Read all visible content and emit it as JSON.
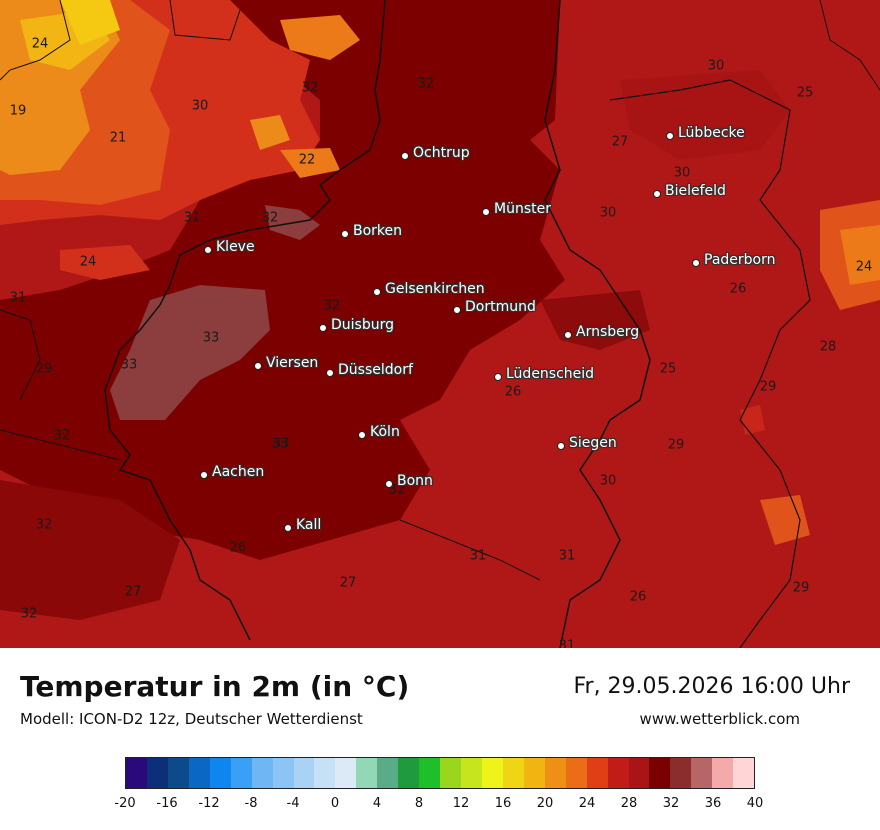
{
  "title": "Temperatur in 2m (in °C)",
  "model": "Modell: ICON-D2 12z, Deutscher Wetterdienst",
  "datetime": "Fr, 29.05.2026 16:00 Uhr",
  "website": "www.wetterblick.com",
  "cities": [
    {
      "name": "Ochtrup"
    },
    {
      "name": "Lübbecke"
    },
    {
      "name": "Bielefeld"
    },
    {
      "name": "Münster"
    },
    {
      "name": "Borken"
    },
    {
      "name": "Kleve"
    },
    {
      "name": "Paderborn"
    },
    {
      "name": "Gelsenkirchen"
    },
    {
      "name": "Dortmund"
    },
    {
      "name": "Duisburg"
    },
    {
      "name": "Arnsberg"
    },
    {
      "name": "Viersen"
    },
    {
      "name": "Düsseldorf"
    },
    {
      "name": "Lüdenscheid"
    },
    {
      "name": "Köln"
    },
    {
      "name": "Siegen"
    },
    {
      "name": "Aachen"
    },
    {
      "name": "Bonn"
    },
    {
      "name": "Kall"
    }
  ],
  "contour_labels": [
    "24",
    "32",
    "32",
    "30",
    "25",
    "19",
    "30",
    "21",
    "27",
    "22",
    "30",
    "31",
    "32",
    "30",
    "24",
    "26",
    "24",
    "31",
    "32",
    "33",
    "33",
    "33",
    "28",
    "25",
    "29",
    "29",
    "26",
    "32",
    "33",
    "29",
    "32",
    "30",
    "32",
    "26",
    "31",
    "31",
    "27",
    "27",
    "26",
    "29",
    "32",
    "31"
  ],
  "colorbar": {
    "colors": [
      "#2a0a7a",
      "#0d2f7a",
      "#0d4a8a",
      "#0a68c4",
      "#0f86ee",
      "#3aa0f5",
      "#6fb6f5",
      "#8cc5f5",
      "#a9d3f5",
      "#c6e1f6",
      "#dceaf8",
      "#92d7b6",
      "#5aab88",
      "#1f9a3c",
      "#1fbf2a",
      "#9ad61c",
      "#c7e51c",
      "#eef41a",
      "#f0d515",
      "#f1b512",
      "#ee8f16",
      "#ec6d18",
      "#e03e14",
      "#c01c18",
      "#a91416",
      "#7a0000",
      "#8c2d2d",
      "#b66666",
      "#f4aaaa",
      "#ffd5d5"
    ],
    "tick_labels": [
      "-20",
      "-16",
      "-12",
      "-8",
      "-4",
      "0",
      "4",
      "8",
      "12",
      "16",
      "20",
      "24",
      "28",
      "32",
      "36",
      "40"
    ]
  }
}
